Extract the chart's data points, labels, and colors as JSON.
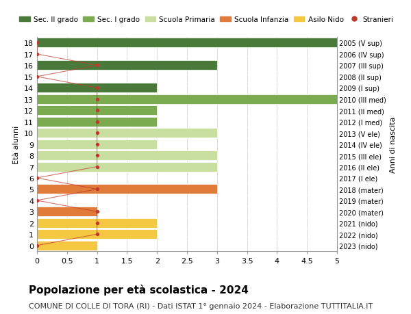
{
  "ages": [
    0,
    1,
    2,
    3,
    4,
    5,
    6,
    7,
    8,
    9,
    10,
    11,
    12,
    13,
    14,
    15,
    16,
    17,
    18
  ],
  "right_labels": [
    "2023 (nido)",
    "2022 (nido)",
    "2021 (nido)",
    "2020 (mater)",
    "2019 (mater)",
    "2018 (mater)",
    "2017 (I ele)",
    "2016 (II ele)",
    "2015 (III ele)",
    "2014 (IV ele)",
    "2013 (V ele)",
    "2012 (I med)",
    "2011 (II med)",
    "2010 (III med)",
    "2009 (I sup)",
    "2008 (II sup)",
    "2007 (III sup)",
    "2006 (IV sup)",
    "2005 (V sup)"
  ],
  "bar_values": [
    1,
    2,
    2,
    1,
    0,
    3,
    0,
    3,
    3,
    2,
    3,
    2,
    2,
    5,
    2,
    0,
    3,
    0,
    5
  ],
  "bar_colors": [
    "#f5c842",
    "#f5c842",
    "#f5c842",
    "#e07b39",
    "#e07b39",
    "#e07b39",
    "#c8dfa0",
    "#c8dfa0",
    "#c8dfa0",
    "#c8dfa0",
    "#c8dfa0",
    "#7aab4e",
    "#7aab4e",
    "#7aab4e",
    "#4a7a3a",
    "#4a7a3a",
    "#4a7a3a",
    "#4a7a3a",
    "#4a7a3a"
  ],
  "stranieri_values": [
    0,
    1,
    1,
    1,
    0,
    1,
    0,
    1,
    1,
    1,
    1,
    1,
    1,
    1,
    1,
    0,
    1,
    0,
    0
  ],
  "stranieri_color": "#c0392b",
  "legend_labels": [
    "Sec. II grado",
    "Sec. I grado",
    "Scuola Primaria",
    "Scuola Infanzia",
    "Asilo Nido",
    "Stranieri"
  ],
  "legend_colors": [
    "#4a7a3a",
    "#7aab4e",
    "#c8dfa0",
    "#e07b39",
    "#f5c842",
    "#c0392b"
  ],
  "ylabel": "Età alunni",
  "right_ylabel": "Anni di nascita",
  "xlim": [
    0,
    5.0
  ],
  "ylim": [
    -0.5,
    18.5
  ],
  "xticks": [
    0,
    0.5,
    1.0,
    1.5,
    2.0,
    2.5,
    3.0,
    3.5,
    4.0,
    4.5,
    5.0
  ],
  "title": "Popolazione per età scolastica - 2024",
  "subtitle": "COMUNE DI COLLE DI TORA (RI) - Dati ISTAT 1° gennaio 2024 - Elaborazione TUTTITALIA.IT",
  "title_fontsize": 11,
  "subtitle_fontsize": 8,
  "bar_height": 0.85,
  "background_color": "#ffffff",
  "grid_color": "#cccccc"
}
